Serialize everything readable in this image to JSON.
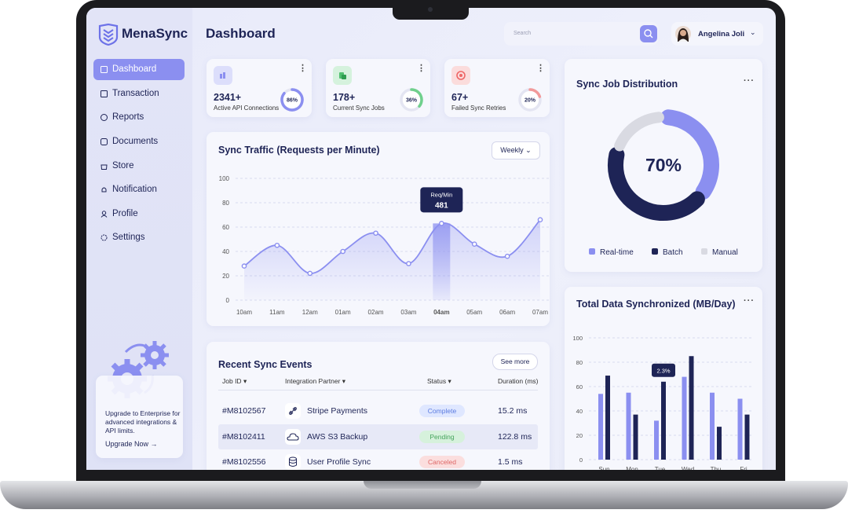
{
  "brand": "MenaSync",
  "header": {
    "title": "Dashboard",
    "search_placeholder": "Search",
    "user": "Angelina Joli"
  },
  "nav": [
    "Dashboard",
    "Transaction",
    "Reports",
    "Documents",
    "Store",
    "Notification",
    "Profile",
    "Settings"
  ],
  "upgrade": {
    "text": "Upgrade to Enterprise for advanced integrations & API limits.",
    "link": "Upgrade Now"
  },
  "stats": [
    {
      "value": "2341+",
      "label": "Active API Connections",
      "progress": {
        "value": 86,
        "label": "86%"
      },
      "color": "#8b8ff0"
    },
    {
      "value": "178+",
      "label": "Current Sync Jobs",
      "progress": {
        "value": 36,
        "label": "36%"
      },
      "color": "#6fd08c"
    },
    {
      "value": "67+",
      "label": "Failed Sync Retries",
      "progress": {
        "value": 20,
        "label": "20%"
      },
      "color": "#f29a9a"
    }
  ],
  "sync_traffic": {
    "type": "line",
    "title": "Sync Traffic (Requests per Minute)",
    "filter": "Weekly",
    "categories": [
      "10am",
      "11am",
      "12am",
      "01am",
      "02am",
      "03am",
      "04am",
      "05am",
      "06am",
      "07am"
    ],
    "values": [
      28,
      45,
      22,
      40,
      55,
      30,
      63,
      46,
      36,
      66
    ],
    "color": "#8b8ff0",
    "ylim": [
      0,
      100
    ],
    "yticks": [
      0,
      20,
      40,
      60,
      80,
      100
    ],
    "grid": true,
    "tooltip": {
      "label": "Req/Min",
      "value": 481
    }
  },
  "sync_distribution": {
    "type": "pie",
    "title": "Sync Job Distribution",
    "center_label": "70%",
    "series": [
      {
        "name": "Real-time",
        "color": "#8b8ff0",
        "value": 36
      },
      {
        "name": "Batch",
        "color": "#1e2456",
        "value": 44
      },
      {
        "name": "Manual",
        "color": "#d9dae2",
        "value": 20
      }
    ]
  },
  "data_synchronized": {
    "type": "bar",
    "title": "Total Data Synchronized (MB/Day)",
    "categories": [
      "Sun",
      "Mon",
      "Tue",
      "Wed",
      "Thu",
      "Fri"
    ],
    "series": [
      {
        "color": "#8b8ff0",
        "values": [
          54,
          55,
          32,
          68,
          55,
          50
        ]
      },
      {
        "color": "#1e2456",
        "values": [
          69,
          37,
          64,
          85,
          27,
          37
        ]
      }
    ],
    "ylim": [
      0,
      100
    ],
    "yticks": [
      0,
      20,
      40,
      60,
      80,
      100
    ],
    "grid": true,
    "tooltip": "2.3%"
  },
  "recent_events": {
    "title": "Recent Sync Events",
    "button": "See more",
    "columns": [
      "Job ID",
      "Integration Partner",
      "Status",
      "Duration (ms)"
    ],
    "rows": [
      [
        "#M8102567",
        "Stripe Payments",
        "Complete",
        "15.2 ms"
      ],
      [
        "#M8102411",
        "AWS S3 Backup",
        "Pending",
        "122.8 ms"
      ],
      [
        "#M8102556",
        "User Profile Sync",
        "Canceled",
        "1.5 ms"
      ]
    ]
  }
}
